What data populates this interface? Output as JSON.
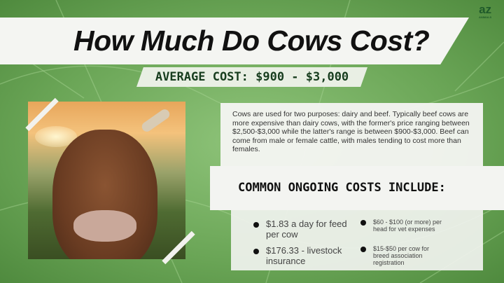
{
  "title": "How Much Do Cows Cost?",
  "average_cost": "AVERAGE COST: $900 - $3,000",
  "logo_text": "AZ ANIMALS",
  "description": "Cows are used for two purposes: dairy and beef. Typically beef cows are more expensive than dairy cows, with the former's price ranging between $2,500-$3,000 while the latter's range is between $900-$3,000. Beef can come from male or female cattle, with males tending to cost more than females.",
  "ongoing_heading": "COMMON ONGOING COSTS INCLUDE:",
  "ongoing_costs": [
    "$1.83 a day for feed per cow",
    "$176.33 - livestock insurance",
    "$60 - $100 (or more) per head for vet expenses",
    "$15-$50 per cow for breed association registration"
  ],
  "colors": {
    "background": "#6aa556",
    "panel": "#f4f5f2",
    "heading": "#173d1e"
  }
}
